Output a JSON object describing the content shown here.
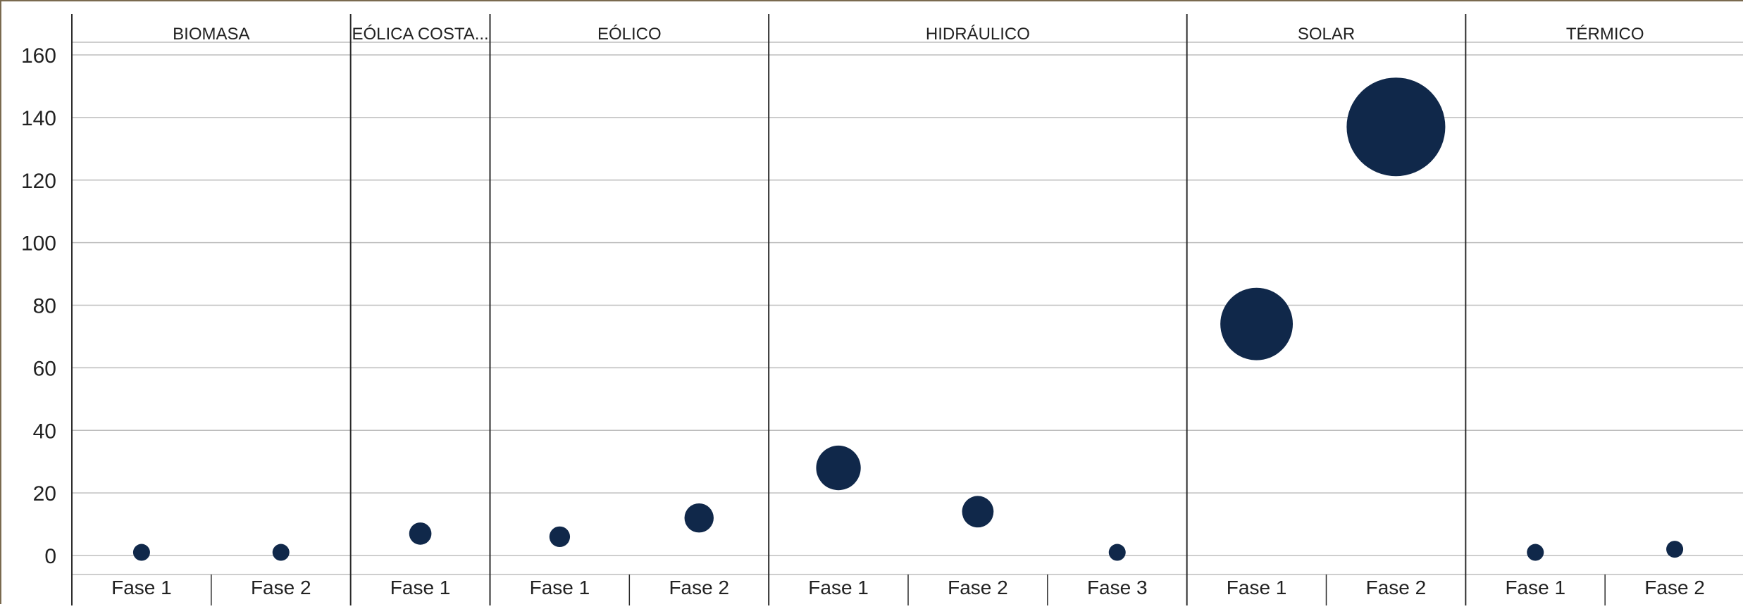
{
  "chart_data": {
    "type": "scatter",
    "groups": [
      {
        "name": "BIOMASA",
        "categories": [
          "Fase 1",
          "Fase 2"
        ]
      },
      {
        "name": "EÓLICA COSTA...",
        "categories": [
          "Fase 1"
        ]
      },
      {
        "name": "EÓLICO",
        "categories": [
          "Fase 1",
          "Fase 2"
        ]
      },
      {
        "name": "HIDRÁULICO",
        "categories": [
          "Fase 1",
          "Fase 2",
          "Fase 3"
        ]
      },
      {
        "name": "SOLAR",
        "categories": [
          "Fase 1",
          "Fase 2"
        ]
      },
      {
        "name": "TÉRMICO",
        "categories": [
          "Fase 1",
          "Fase 2"
        ]
      }
    ],
    "points": [
      {
        "group": "BIOMASA",
        "category": "Fase 1",
        "value": 1
      },
      {
        "group": "BIOMASA",
        "category": "Fase 2",
        "value": 1
      },
      {
        "group": "EÓLICA COSTA...",
        "category": "Fase 1",
        "value": 7
      },
      {
        "group": "EÓLICO",
        "category": "Fase 1",
        "value": 6
      },
      {
        "group": "EÓLICO",
        "category": "Fase 2",
        "value": 12
      },
      {
        "group": "HIDRÁULICO",
        "category": "Fase 1",
        "value": 28
      },
      {
        "group": "HIDRÁULICO",
        "category": "Fase 2",
        "value": 14
      },
      {
        "group": "HIDRÁULICO",
        "category": "Fase 3",
        "value": 1
      },
      {
        "group": "SOLAR",
        "category": "Fase 1",
        "value": 74
      },
      {
        "group": "SOLAR",
        "category": "Fase 2",
        "value": 137
      },
      {
        "group": "TÉRMICO",
        "category": "Fase 1",
        "value": 1
      },
      {
        "group": "TÉRMICO",
        "category": "Fase 2",
        "value": 2
      }
    ],
    "bubble_size": "value",
    "y_ticks": [
      0,
      20,
      40,
      60,
      80,
      100,
      120,
      140,
      160
    ],
    "ylim": [
      -6,
      166
    ],
    "grid": true,
    "title": "",
    "xlabel": "",
    "ylabel": "",
    "colors": {
      "bubble": "#10284a",
      "grid": "#bdbdbd",
      "divider": "#2b2b2b",
      "text": "#222222",
      "frame": "#7a6a4f"
    }
  }
}
